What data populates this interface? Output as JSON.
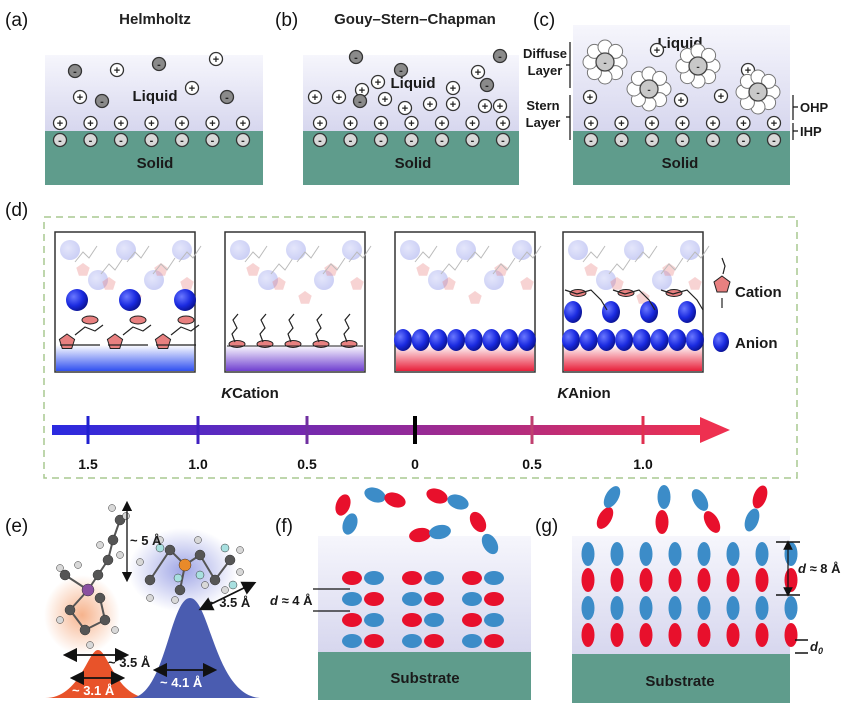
{
  "panels": {
    "a": {
      "label": "(a)",
      "title": "Helmholtz",
      "liquid": "Liquid",
      "solid": "Solid"
    },
    "b": {
      "label": "(b)",
      "title": "Gouy–Stern–Chapman",
      "liquid": "Liquid",
      "solid": "Solid"
    },
    "c": {
      "label": "(c)",
      "liquid": "Liquid",
      "solid": "Solid",
      "diffuse1": "Diffuse",
      "diffuse2": "Layer",
      "stern1": "Stern",
      "stern2": "Layer",
      "ohp": "OHP",
      "ihp": "IHP"
    },
    "d": {
      "label": "(d)",
      "legend_cation": "Cation",
      "legend_anion": "Anion",
      "k_cation": "KCation",
      "k_anion": "KAnion",
      "scale_ticks": [
        "1.5",
        "1.0",
        "0.5",
        "0",
        "0.5",
        "1.0"
      ]
    },
    "e": {
      "label": "(e)",
      "dim_5": "~ 5 Å",
      "dim_35a": "~ 3.5 Å",
      "dim_35b": "~ 3.5 Å",
      "dim_41": "~ 4.1 Å",
      "dim_31": "~ 3.1 Å"
    },
    "f": {
      "label": "(f)",
      "spacing": "d ≈ 4 Å",
      "substrate": "Substrate"
    },
    "g": {
      "label": "(g)",
      "spacing": "d ≈ 8 Å",
      "d0": "d0",
      "substrate": "Substrate"
    }
  },
  "ion_symbols": {
    "cation": "+",
    "anion": "-"
  },
  "colors": {
    "solid": "#5f9c8c",
    "liquid": "#dcdcf0",
    "cation_red": "#e8102c",
    "anion_blue": "#3c8cc8",
    "sphere_blue": "#1a2ae0",
    "pentagon": "#e88080",
    "arrow_start": "#2a2ae0",
    "arrow_end": "#ee3050",
    "peak_red": "#e8532a",
    "peak_blue": "#4a5cb0"
  }
}
